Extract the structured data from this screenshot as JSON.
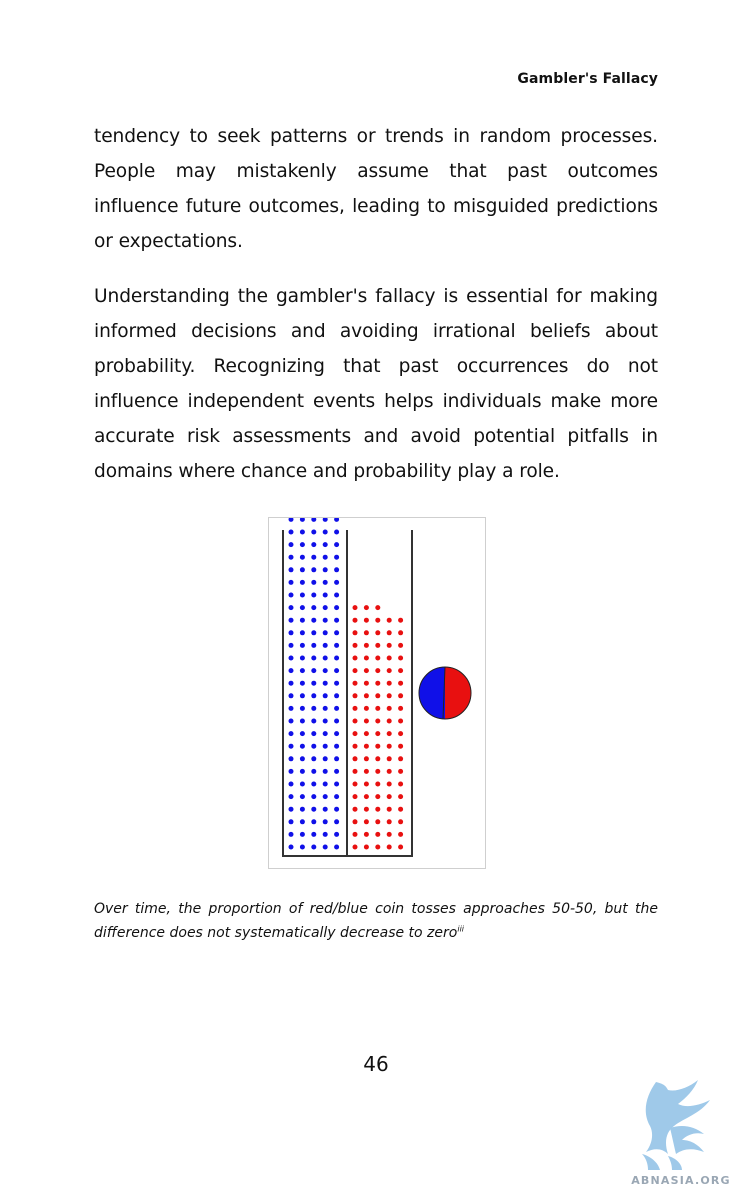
{
  "header": {
    "running_title": "Gambler's Fallacy"
  },
  "paragraphs": [
    "tendency to seek patterns or trends in random processes. People may mistakenly assume that past outcomes influence future outcomes, leading to misguided predictions or expectations.",
    "Understanding the gambler's fallacy is essential for making informed decisions and avoiding irrational beliefs about probability. Recognizing that past occurrences do not influence independent events helps individuals make more accurate risk assessments and avoid potential pitfalls in domains where chance and probability play a role."
  ],
  "figure": {
    "blue_color": "#1010e8",
    "red_color": "#e81010",
    "blue_count": 137,
    "red_count": 98,
    "pie_blue_fraction": 0.5,
    "pie_red_fraction": 0.5
  },
  "caption": {
    "text": "Over time, the proportion of red/blue coin tosses approaches 50-50, but the difference does not systematically decrease to zero",
    "note_marker": "iii"
  },
  "footer": {
    "page_number": "46"
  },
  "watermark": {
    "logo_text": "ABNASIA.ORG",
    "color": "#6fa8d8"
  }
}
